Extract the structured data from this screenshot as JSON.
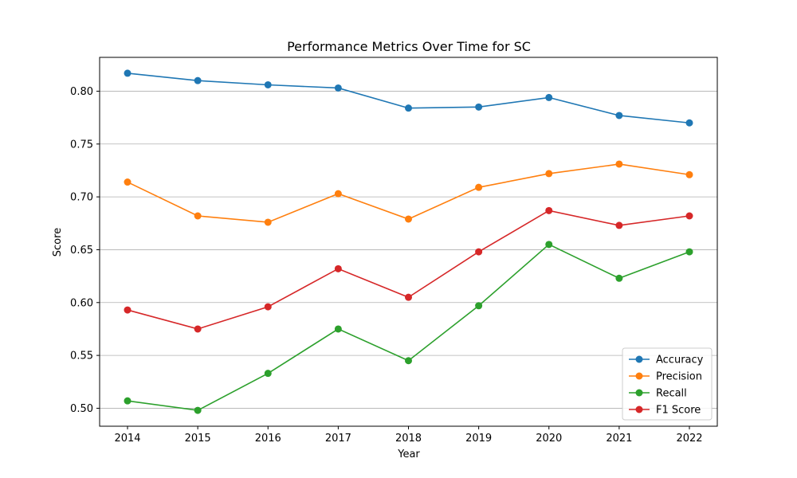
{
  "chart_data": {
    "type": "line",
    "title": "Performance Metrics Over Time for SC",
    "xlabel": "Year",
    "ylabel": "Score",
    "x": [
      2014,
      2015,
      2016,
      2017,
      2018,
      2019,
      2020,
      2021,
      2022
    ],
    "ylim": [
      0.483,
      0.832
    ],
    "yticks": [
      0.5,
      0.55,
      0.6,
      0.65,
      0.7,
      0.75,
      0.8
    ],
    "ytick_labels": [
      "0.50",
      "0.55",
      "0.60",
      "0.65",
      "0.70",
      "0.75",
      "0.80"
    ],
    "grid": "y",
    "legend_position": "bottom-right",
    "series": [
      {
        "name": "Accuracy",
        "color": "#1f77b4",
        "values": [
          0.817,
          0.81,
          0.806,
          0.803,
          0.784,
          0.785,
          0.794,
          0.777,
          0.77
        ]
      },
      {
        "name": "Precision",
        "color": "#ff7f0e",
        "values": [
          0.714,
          0.682,
          0.676,
          0.703,
          0.679,
          0.709,
          0.722,
          0.731,
          0.721
        ]
      },
      {
        "name": "Recall",
        "color": "#2ca02c",
        "values": [
          0.507,
          0.498,
          0.533,
          0.575,
          0.545,
          0.597,
          0.655,
          0.623,
          0.648
        ]
      },
      {
        "name": "F1 Score",
        "color": "#d62728",
        "values": [
          0.593,
          0.575,
          0.596,
          0.632,
          0.605,
          0.648,
          0.687,
          0.673,
          0.682
        ]
      }
    ]
  }
}
